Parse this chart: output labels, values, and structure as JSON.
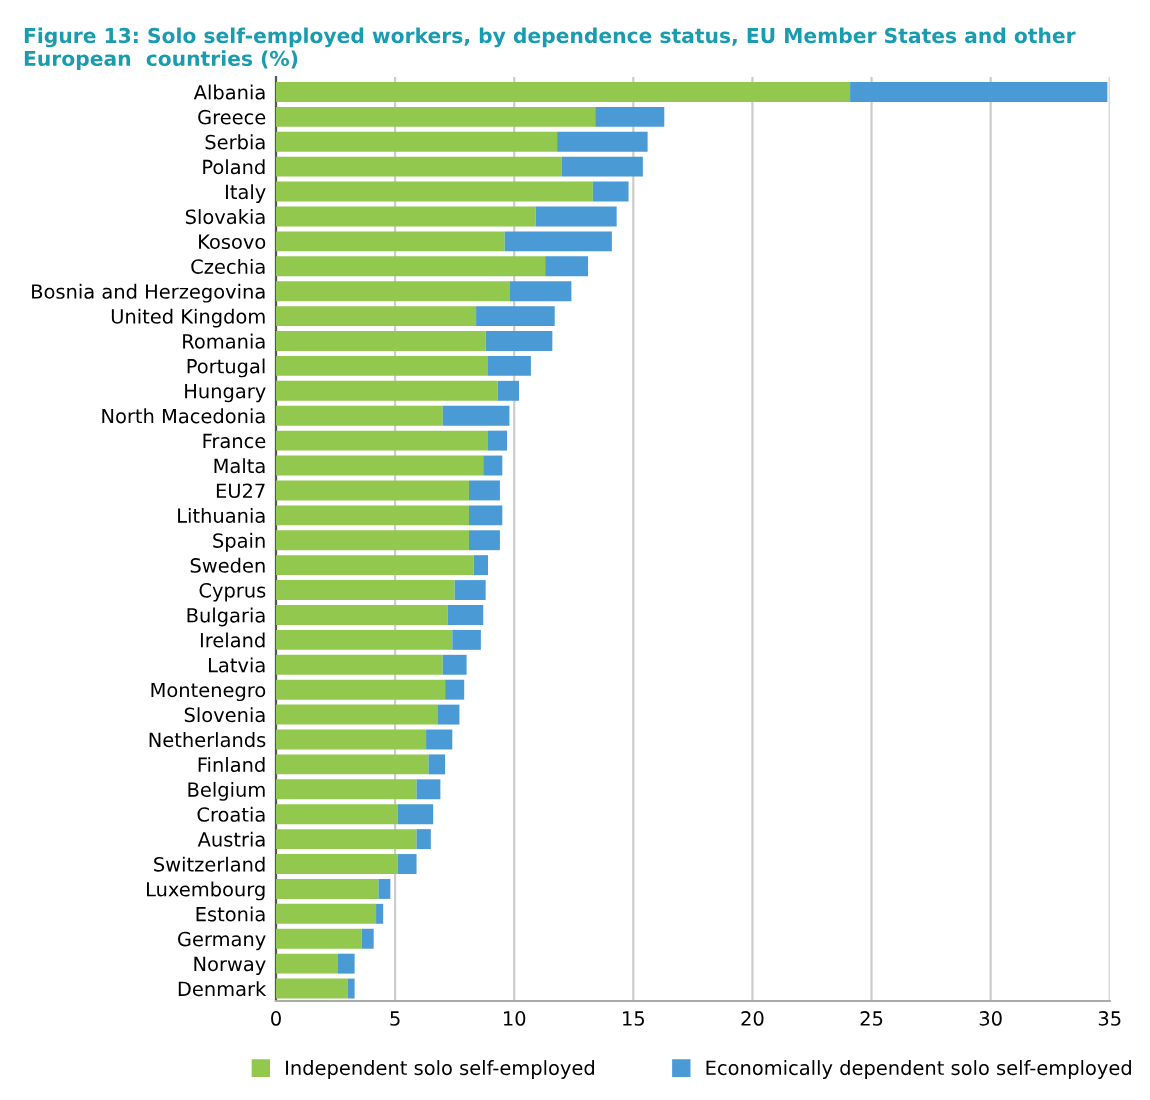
{
  "chart_data": {
    "type": "bar",
    "orientation": "horizontal",
    "stacked": true,
    "title": "Figure 13: Solo self-employed workers, by dependence status, EU Member States and other European  countries (%)",
    "categories": [
      "Albania",
      "Greece",
      "Serbia",
      "Poland",
      "Italy",
      "Slovakia",
      "Kosovo",
      "Czechia",
      "Bosnia and Herzegovina",
      "United Kingdom",
      "Romania",
      "Portugal",
      "Hungary",
      "North Macedonia",
      "France",
      "Malta",
      "EU27",
      "Lithuania",
      "Spain",
      "Sweden",
      "Cyprus",
      "Bulgaria",
      "Ireland",
      "Latvia",
      "Montenegro",
      "Slovenia",
      "Netherlands",
      "Finland",
      "Belgium",
      "Croatia",
      "Austria",
      "Switzerland",
      "Luxembourg",
      "Estonia",
      "Germany",
      "Norway",
      "Denmark"
    ],
    "series": [
      {
        "name": "Independent solo self-employed",
        "color": "#92c84e",
        "values": [
          24.1,
          13.4,
          11.8,
          12.0,
          13.3,
          10.9,
          9.6,
          11.3,
          9.8,
          8.4,
          8.8,
          8.9,
          9.3,
          7.0,
          8.9,
          8.7,
          8.1,
          8.1,
          8.1,
          8.3,
          7.5,
          7.2,
          7.4,
          7.0,
          7.1,
          6.8,
          6.3,
          6.4,
          5.9,
          5.1,
          5.9,
          5.1,
          4.3,
          4.2,
          3.6,
          2.6,
          3.0
        ]
      },
      {
        "name": "Economically dependent solo self-employed",
        "color": "#4a9ad6",
        "values": [
          10.8,
          2.9,
          3.8,
          3.4,
          1.5,
          3.4,
          4.5,
          1.8,
          2.6,
          3.3,
          2.8,
          1.8,
          0.9,
          2.8,
          0.8,
          0.8,
          1.3,
          1.4,
          1.3,
          0.6,
          1.3,
          1.5,
          1.2,
          1.0,
          0.8,
          0.9,
          1.1,
          0.7,
          1.0,
          1.5,
          0.6,
          0.8,
          0.5,
          0.3,
          0.5,
          0.7,
          0.3
        ]
      }
    ],
    "xlim": [
      0,
      35
    ],
    "xticks": [
      0,
      5,
      10,
      15,
      20,
      25,
      30,
      35
    ],
    "grid": "x",
    "legend": "bottom"
  }
}
